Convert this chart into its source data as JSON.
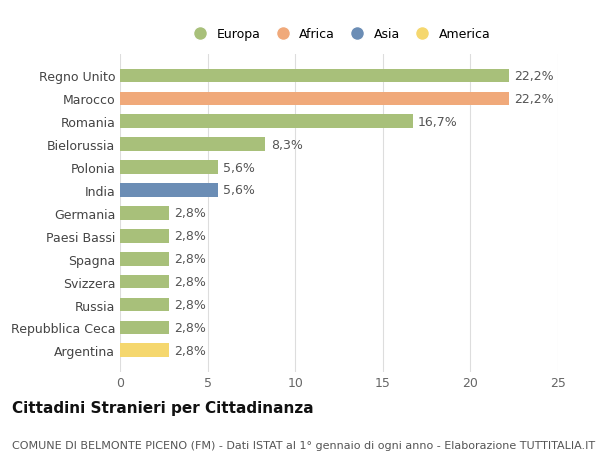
{
  "categories": [
    "Argentina",
    "Repubblica Ceca",
    "Russia",
    "Svizzera",
    "Spagna",
    "Paesi Bassi",
    "Germania",
    "India",
    "Polonia",
    "Bielorussia",
    "Romania",
    "Marocco",
    "Regno Unito"
  ],
  "values": [
    2.8,
    2.8,
    2.8,
    2.8,
    2.8,
    2.8,
    2.8,
    5.6,
    5.6,
    8.3,
    16.7,
    22.2,
    22.2
  ],
  "bar_colors": [
    "#f5d76e",
    "#a8c07a",
    "#a8c07a",
    "#a8c07a",
    "#a8c07a",
    "#a8c07a",
    "#a8c07a",
    "#6b8db5",
    "#a8c07a",
    "#a8c07a",
    "#a8c07a",
    "#f0a97a",
    "#a8c07a"
  ],
  "labels": [
    "2,8%",
    "2,8%",
    "2,8%",
    "2,8%",
    "2,8%",
    "2,8%",
    "2,8%",
    "5,6%",
    "5,6%",
    "8,3%",
    "16,7%",
    "22,2%",
    "22,2%"
  ],
  "legend": [
    {
      "label": "Europa",
      "color": "#a8c07a"
    },
    {
      "label": "Africa",
      "color": "#f0a97a"
    },
    {
      "label": "Asia",
      "color": "#6b8db5"
    },
    {
      "label": "America",
      "color": "#f5d76e"
    }
  ],
  "title": "Cittadini Stranieri per Cittadinanza",
  "subtitle": "COMUNE DI BELMONTE PICENO (FM) - Dati ISTAT al 1° gennaio di ogni anno - Elaborazione TUTTITALIA.IT",
  "xlim": [
    0,
    25
  ],
  "xticks": [
    0,
    5,
    10,
    15,
    20,
    25
  ],
  "background_color": "#ffffff",
  "grid_color": "#dddddd",
  "bar_height": 0.6,
  "label_fontsize": 9,
  "tick_fontsize": 9,
  "title_fontsize": 11,
  "subtitle_fontsize": 8
}
